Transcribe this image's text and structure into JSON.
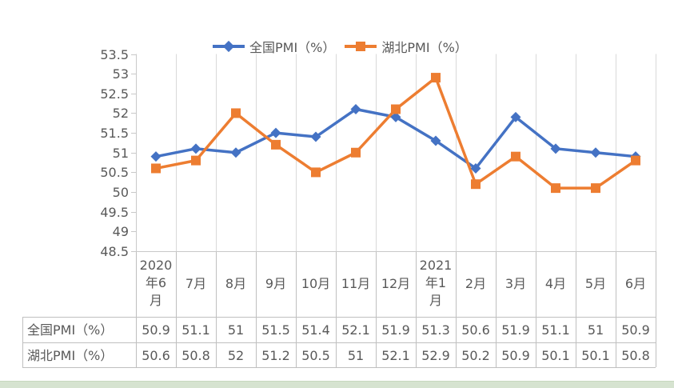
{
  "page": {
    "background": "#ffffff",
    "bottom_strip_color": "#d6e3d0"
  },
  "colors": {
    "text": "#595959",
    "gridline": "#d9d9d9",
    "axis": "#c9c9c9",
    "table_border": "#bfbfbf",
    "series_blue": "#4472C4",
    "series_orange": "#ED7D31"
  },
  "chart_data": {
    "type": "line",
    "title": "",
    "xlabel": "",
    "ylabel": "",
    "grid": "vertical-only",
    "legend_position": "top",
    "data_table_shown": true,
    "categories": [
      "2020年6月",
      "7月",
      "8月",
      "9月",
      "10月",
      "11月",
      "12月",
      "2021年1月",
      "2月",
      "3月",
      "4月",
      "5月",
      "6月"
    ],
    "series": [
      {
        "id": "national-pmi",
        "name": "全国PMI（%）",
        "color": "#4472C4",
        "marker": "diamond",
        "values": [
          50.9,
          51.1,
          51,
          51.5,
          51.4,
          52.1,
          51.9,
          51.3,
          50.6,
          51.9,
          51.1,
          51,
          50.9
        ]
      },
      {
        "id": "hubei-pmi",
        "name": "湖北PMI（%）",
        "color": "#ED7D31",
        "marker": "square",
        "values": [
          50.6,
          50.8,
          52,
          51.2,
          50.5,
          51,
          52.1,
          52.9,
          50.2,
          50.9,
          50.1,
          50.1,
          50.8
        ]
      }
    ],
    "ylim": [
      48.5,
      53.5
    ],
    "ytick_step": 0.5,
    "ytick_labels": [
      "53.5",
      "53",
      "52.5",
      "52",
      "51.5",
      "51",
      "50.5",
      "50",
      "49.5",
      "49",
      "48.5"
    ]
  }
}
